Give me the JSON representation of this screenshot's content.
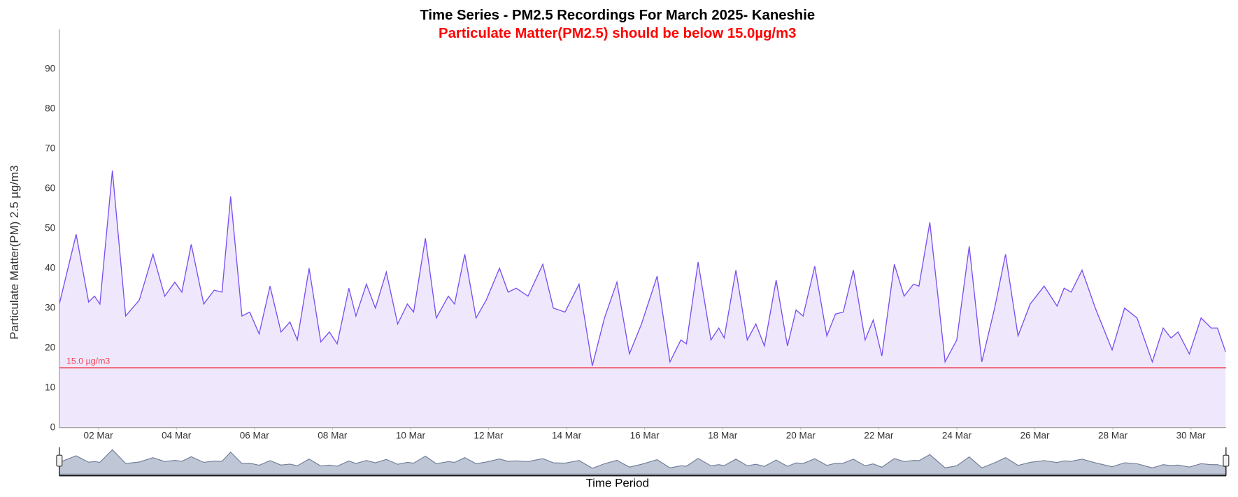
{
  "chart_data": {
    "type": "area",
    "title": "Time Series - PM2.5 Recordings For March 2025- Kaneshie",
    "subtitle": "Particulate Matter(PM2.5) should be below 15.0µg/m3",
    "y_label": "Particulate Matter(PM) 2.5 µg/m3",
    "x_label": "Time Period",
    "range_input": "30",
    "color": "#7b4ff0",
    "fill": "#efe8fd",
    "x": [
      1.0,
      1.43,
      1.75,
      1.9,
      2.04,
      2.36,
      2.7,
      3.05,
      3.4,
      3.7,
      3.96,
      4.14,
      4.38,
      4.7,
      4.97,
      5.17,
      5.39,
      5.68,
      5.88,
      6.12,
      6.4,
      6.68,
      6.91,
      7.1,
      7.4,
      7.7,
      7.92,
      8.12,
      8.42,
      8.6,
      8.87,
      9.1,
      9.38,
      9.67,
      9.92,
      10.08,
      10.38,
      10.66,
      10.97,
      11.13,
      11.39,
      11.68,
      11.94,
      12.28,
      12.5,
      12.71,
      13.01,
      13.39,
      13.66,
      13.96,
      14.32,
      14.66,
      14.97,
      15.29,
      15.61,
      15.92,
      16.32,
      16.65,
      16.93,
      17.07,
      17.37,
      17.7,
      17.9,
      18.04,
      18.34,
      18.63,
      18.85,
      19.07,
      19.37,
      19.66,
      19.88,
      20.06,
      20.36,
      20.67,
      20.89,
      21.09,
      21.35,
      21.65,
      21.86,
      22.08,
      22.4,
      22.65,
      22.89,
      23.03,
      23.31,
      23.7,
      24.0,
      24.32,
      24.64,
      24.97,
      25.25,
      25.57,
      25.88,
      26.24,
      26.57,
      26.75,
      26.93,
      27.21,
      27.55,
      27.98,
      28.3,
      28.62,
      29.01,
      29.29,
      29.49,
      29.67,
      29.96,
      30.26,
      30.52,
      30.68,
      30.89
    ],
    "values": [
      31,
      48.5,
      31.5,
      33,
      31,
      64.5,
      28,
      32,
      43.5,
      33,
      36.5,
      34,
      46,
      31,
      34.5,
      34,
      58,
      28,
      29,
      23.5,
      35.5,
      24,
      26.5,
      22,
      40,
      21.5,
      24,
      21,
      35,
      28,
      36,
      30,
      39,
      26,
      31,
      29,
      47.5,
      27.5,
      33,
      31,
      43.5,
      27.5,
      32,
      40,
      34,
      35,
      33,
      41,
      30,
      29,
      36,
      15.5,
      27.5,
      36.5,
      18.5,
      26,
      38,
      16.5,
      22,
      21,
      41.5,
      22,
      25,
      22.5,
      39.5,
      22,
      26,
      20.5,
      37,
      20.5,
      29.5,
      28,
      40.5,
      23,
      28.5,
      29,
      39.5,
      22,
      27,
      18,
      41,
      33,
      36,
      35.5,
      51.5,
      16.5,
      22,
      45.5,
      16.5,
      30,
      43.5,
      23,
      31,
      35.5,
      30.5,
      35,
      34,
      39.5,
      30,
      19.5,
      30,
      27.5,
      16.5,
      25,
      22.5,
      24,
      18.5,
      27.5,
      25,
      25,
      19
    ],
    "xlim": [
      1,
      30.9
    ],
    "ylim": [
      0,
      100
    ],
    "xticks": [
      {
        "value": 2,
        "label": "02 Mar"
      },
      {
        "value": 4,
        "label": "04 Mar"
      },
      {
        "value": 6,
        "label": "06 Mar"
      },
      {
        "value": 8,
        "label": "08 Mar"
      },
      {
        "value": 10,
        "label": "10 Mar"
      },
      {
        "value": 12,
        "label": "12 Mar"
      },
      {
        "value": 14,
        "label": "14 Mar"
      },
      {
        "value": 16,
        "label": "16 Mar"
      },
      {
        "value": 18,
        "label": "18 Mar"
      },
      {
        "value": 20,
        "label": "20 Mar"
      },
      {
        "value": 22,
        "label": "22 Mar"
      },
      {
        "value": 24,
        "label": "24 Mar"
      },
      {
        "value": 26,
        "label": "26 Mar"
      },
      {
        "value": 28,
        "label": "28 Mar"
      },
      {
        "value": 30,
        "label": "30 Mar"
      }
    ],
    "yticks": [
      0,
      10,
      20,
      30,
      40,
      50,
      60,
      70,
      80,
      90
    ],
    "threshold": {
      "value": 15,
      "label": "15.0 µg/m3",
      "color": "#f0404f"
    }
  }
}
